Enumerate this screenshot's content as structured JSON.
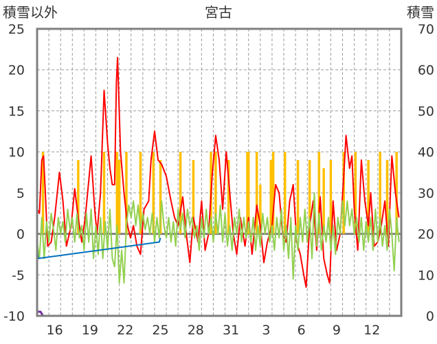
{
  "chart_data": {
    "type": "line",
    "title": "宮古",
    "ylabel_left": "積雪以外",
    "ylabel_right": "積雪",
    "y_left_range": [
      -10,
      25
    ],
    "y_left_ticks": [
      "25",
      "20",
      "15",
      "10",
      "5",
      "0",
      "-5",
      "-10"
    ],
    "y_right_range": [
      0,
      70
    ],
    "y_right_ticks": [
      "70",
      "60",
      "50",
      "40",
      "30",
      "20",
      "10",
      "0"
    ],
    "x_range_days": [
      0,
      31
    ],
    "x_ticks": [
      "16",
      "19",
      "22",
      "25",
      "28",
      "31",
      "3",
      "6",
      "9",
      "12"
    ],
    "x_tick_positions_days": [
      1.5,
      4.5,
      7.5,
      10.5,
      13.5,
      16.5,
      19.5,
      22.5,
      25.5,
      28.5
    ],
    "grid_vertical": "dashed, every day",
    "grid_horizontal": "dashed",
    "colors": {
      "precipitation": "#ffc000",
      "wind": "#ff0000",
      "temperature": "#92d050",
      "snow_depth": "#7030a0",
      "sunshine": "#0070c0",
      "zero_line": "#808080"
    },
    "series": [
      {
        "key": "precipitation",
        "axis": "left",
        "style": "bars",
        "baseline": 0,
        "bars": [
          [
            0.5,
            10
          ],
          [
            3.5,
            9
          ],
          [
            5.7,
            10
          ],
          [
            6.8,
            10
          ],
          [
            7.0,
            9
          ],
          [
            7.6,
            10
          ],
          [
            8.8,
            10
          ],
          [
            9.9,
            10
          ],
          [
            10.5,
            9
          ],
          [
            12.2,
            10
          ],
          [
            13.3,
            9
          ],
          [
            14.8,
            10
          ],
          [
            15.2,
            10
          ],
          [
            16.3,
            9
          ],
          [
            17.9,
            10
          ],
          [
            18.0,
            10
          ],
          [
            18.7,
            10
          ],
          [
            19.0,
            6
          ],
          [
            19.9,
            9
          ],
          [
            20.1,
            10
          ],
          [
            21.1,
            10
          ],
          [
            22.2,
            9
          ],
          [
            23.2,
            9
          ],
          [
            24.0,
            10
          ],
          [
            24.4,
            8
          ],
          [
            25.0,
            9
          ],
          [
            26.1,
            10
          ],
          [
            27.1,
            10
          ],
          [
            28.2,
            9
          ],
          [
            29.2,
            10
          ],
          [
            29.8,
            9
          ],
          [
            30.6,
            10
          ]
        ]
      },
      {
        "key": "wind",
        "axis": "left",
        "style": "line",
        "points": [
          [
            0,
            3
          ],
          [
            0.2,
            2.5
          ],
          [
            0.4,
            9
          ],
          [
            0.55,
            9.5
          ],
          [
            0.7,
            5
          ],
          [
            0.9,
            -1.5
          ],
          [
            1.2,
            -1
          ],
          [
            1.5,
            2
          ],
          [
            1.9,
            7.5
          ],
          [
            2.2,
            4
          ],
          [
            2.5,
            -1.5
          ],
          [
            2.9,
            1
          ],
          [
            3.2,
            5.5
          ],
          [
            3.5,
            2
          ],
          [
            3.8,
            -1
          ],
          [
            4.1,
            2
          ],
          [
            4.6,
            9.5
          ],
          [
            4.9,
            3
          ],
          [
            5.1,
            0
          ],
          [
            5.4,
            5
          ],
          [
            5.7,
            17.5
          ],
          [
            6.0,
            11
          ],
          [
            6.2,
            8
          ],
          [
            6.4,
            6
          ],
          [
            6.6,
            6
          ],
          [
            6.75,
            18.5
          ],
          [
            6.85,
            21.5
          ],
          [
            7.1,
            10
          ],
          [
            7.4,
            5
          ],
          [
            7.7,
            1
          ],
          [
            7.95,
            -0.5
          ],
          [
            8.2,
            1
          ],
          [
            8.5,
            -1.5
          ],
          [
            8.8,
            -2.5
          ],
          [
            9.1,
            3
          ],
          [
            9.5,
            4
          ],
          [
            9.7,
            9
          ],
          [
            10.0,
            12.5
          ],
          [
            10.3,
            9
          ],
          [
            10.6,
            8.5
          ],
          [
            11.0,
            7
          ],
          [
            11.4,
            4
          ],
          [
            11.7,
            2
          ],
          [
            12.0,
            1
          ],
          [
            12.4,
            4.5
          ],
          [
            12.7,
            0
          ],
          [
            13.0,
            -3.5
          ],
          [
            13.3,
            2
          ],
          [
            13.7,
            -1
          ],
          [
            14.0,
            4
          ],
          [
            14.3,
            -2
          ],
          [
            14.6,
            0
          ],
          [
            14.9,
            7
          ],
          [
            15.2,
            12
          ],
          [
            15.5,
            9
          ],
          [
            15.8,
            3
          ],
          [
            16.1,
            10
          ],
          [
            16.4,
            5
          ],
          [
            16.7,
            0
          ],
          [
            17.0,
            -2.5
          ],
          [
            17.3,
            2
          ],
          [
            17.7,
            -1.5
          ],
          [
            18.0,
            2
          ],
          [
            18.3,
            -2.5
          ],
          [
            18.7,
            3.5
          ],
          [
            19.0,
            1
          ],
          [
            19.3,
            -3.5
          ],
          [
            19.6,
            -1
          ],
          [
            20.0,
            1
          ],
          [
            20.3,
            6
          ],
          [
            20.6,
            5
          ],
          [
            20.9,
            0
          ],
          [
            21.2,
            -1
          ],
          [
            21.5,
            4
          ],
          [
            21.8,
            6
          ],
          [
            22.1,
            -1
          ],
          [
            22.4,
            -2.5
          ],
          [
            22.7,
            -5
          ],
          [
            22.9,
            -6.5
          ],
          [
            23.2,
            1
          ],
          [
            23.5,
            4
          ],
          [
            23.8,
            -2
          ],
          [
            24.1,
            4.5
          ],
          [
            24.4,
            -3
          ],
          [
            24.7,
            -5
          ],
          [
            24.9,
            -6
          ],
          [
            25.2,
            4
          ],
          [
            25.5,
            -2
          ],
          [
            25.8,
            0
          ],
          [
            26.1,
            7
          ],
          [
            26.3,
            12
          ],
          [
            26.6,
            8
          ],
          [
            26.8,
            9.5
          ],
          [
            27.0,
            3
          ],
          [
            27.3,
            -2
          ],
          [
            27.6,
            9
          ],
          [
            27.9,
            4
          ],
          [
            28.2,
            1
          ],
          [
            28.4,
            5
          ],
          [
            28.7,
            -1.5
          ],
          [
            29.0,
            -1
          ],
          [
            29.3,
            1
          ],
          [
            29.6,
            4
          ],
          [
            29.9,
            -1.5
          ],
          [
            30.2,
            9.5
          ],
          [
            30.5,
            5
          ],
          [
            30.8,
            2
          ]
        ]
      },
      {
        "key": "temperature",
        "axis": "left",
        "style": "line",
        "points": [
          [
            0,
            -1
          ],
          [
            0.2,
            -3
          ],
          [
            0.4,
            2
          ],
          [
            0.6,
            -3
          ],
          [
            0.8,
            1.5
          ],
          [
            1.0,
            -1
          ],
          [
            1.2,
            2.5
          ],
          [
            1.4,
            0.5
          ],
          [
            1.6,
            -2
          ],
          [
            1.8,
            2
          ],
          [
            2.0,
            0
          ],
          [
            2.2,
            1.5
          ],
          [
            2.4,
            -1
          ],
          [
            2.6,
            3
          ],
          [
            2.8,
            0.5
          ],
          [
            3.0,
            2
          ],
          [
            3.2,
            -1
          ],
          [
            3.4,
            2.5
          ],
          [
            3.6,
            -0.5
          ],
          [
            3.8,
            1
          ],
          [
            4.0,
            -2
          ],
          [
            4.2,
            2.5
          ],
          [
            4.4,
            -1
          ],
          [
            4.6,
            3
          ],
          [
            4.8,
            -3
          ],
          [
            5.0,
            1
          ],
          [
            5.2,
            -2.5
          ],
          [
            5.4,
            2
          ],
          [
            5.6,
            -3
          ],
          [
            5.8,
            1.5
          ],
          [
            6.0,
            -2
          ],
          [
            6.2,
            3
          ],
          [
            6.4,
            -3
          ],
          [
            6.6,
            -4
          ],
          [
            6.8,
            1
          ],
          [
            7.0,
            -6
          ],
          [
            7.2,
            -2
          ],
          [
            7.4,
            -6
          ],
          [
            7.6,
            1
          ],
          [
            7.8,
            3.5
          ],
          [
            8.0,
            2
          ],
          [
            8.2,
            4
          ],
          [
            8.4,
            1
          ],
          [
            8.6,
            3.5
          ],
          [
            8.8,
            0.5
          ],
          [
            9.0,
            2.5
          ],
          [
            9.2,
            0.5
          ],
          [
            9.4,
            2
          ],
          [
            9.6,
            0
          ],
          [
            9.8,
            2.5
          ],
          [
            10.0,
            -1
          ],
          [
            10.2,
            2
          ],
          [
            10.4,
            -0.5
          ],
          [
            10.6,
            4
          ],
          [
            10.8,
            1
          ],
          [
            11.0,
            -0.5
          ],
          [
            11.2,
            2
          ],
          [
            11.4,
            -1
          ],
          [
            11.6,
            1.5
          ],
          [
            11.8,
            -1.5
          ],
          [
            12.0,
            3
          ],
          [
            12.2,
            0.5
          ],
          [
            12.4,
            2.5
          ],
          [
            12.6,
            -0.5
          ],
          [
            12.8,
            3
          ],
          [
            13.0,
            1
          ],
          [
            13.2,
            2
          ],
          [
            13.4,
            -0.5
          ],
          [
            13.6,
            1
          ],
          [
            13.8,
            -2
          ],
          [
            14.0,
            2
          ],
          [
            14.2,
            -0.5
          ],
          [
            14.4,
            3
          ],
          [
            14.6,
            0
          ],
          [
            14.8,
            2
          ],
          [
            15.0,
            -1
          ],
          [
            15.2,
            2.5
          ],
          [
            15.4,
            0
          ],
          [
            15.6,
            3.5
          ],
          [
            15.8,
            -1
          ],
          [
            16.0,
            2.5
          ],
          [
            16.2,
            -1.5
          ],
          [
            16.4,
            1
          ],
          [
            16.6,
            -2
          ],
          [
            16.8,
            2
          ],
          [
            17.0,
            0
          ],
          [
            17.2,
            3
          ],
          [
            17.4,
            -1
          ],
          [
            17.6,
            2
          ],
          [
            17.8,
            -0.5
          ],
          [
            18.0,
            1.5
          ],
          [
            18.2,
            -1
          ],
          [
            18.4,
            2
          ],
          [
            18.6,
            -2
          ],
          [
            18.8,
            1
          ],
          [
            19.0,
            -1.5
          ],
          [
            19.2,
            2.5
          ],
          [
            19.4,
            0
          ],
          [
            19.6,
            2
          ],
          [
            19.8,
            -1
          ],
          [
            20.0,
            1
          ],
          [
            20.2,
            -2
          ],
          [
            20.4,
            2
          ],
          [
            20.6,
            -0.5
          ],
          [
            20.8,
            3
          ],
          [
            21.0,
            -2
          ],
          [
            21.2,
            1
          ],
          [
            21.4,
            -3
          ],
          [
            21.6,
            2
          ],
          [
            21.8,
            -5.5
          ],
          [
            22.0,
            1
          ],
          [
            22.2,
            -2
          ],
          [
            22.4,
            2
          ],
          [
            22.6,
            -1
          ],
          [
            22.8,
            3
          ],
          [
            23.0,
            -1
          ],
          [
            23.2,
            2
          ],
          [
            23.4,
            -3
          ],
          [
            23.6,
            5
          ],
          [
            23.8,
            -1.5
          ],
          [
            24.0,
            2.5
          ],
          [
            24.2,
            -2
          ],
          [
            24.4,
            1
          ],
          [
            24.6,
            -1
          ],
          [
            24.8,
            2
          ],
          [
            25.0,
            -2
          ],
          [
            25.2,
            1
          ],
          [
            25.4,
            -2.5
          ],
          [
            25.6,
            2
          ],
          [
            25.8,
            0
          ],
          [
            26.0,
            4
          ],
          [
            26.2,
            1
          ],
          [
            26.4,
            4
          ],
          [
            26.6,
            1
          ],
          [
            26.8,
            3
          ],
          [
            27.0,
            0
          ],
          [
            27.2,
            2
          ],
          [
            27.4,
            -1
          ],
          [
            27.6,
            2
          ],
          [
            27.8,
            -2
          ],
          [
            28.0,
            1.5
          ],
          [
            28.2,
            -1
          ],
          [
            28.4,
            2
          ],
          [
            28.6,
            -2
          ],
          [
            28.8,
            3
          ],
          [
            29.0,
            -1
          ],
          [
            29.2,
            2
          ],
          [
            29.4,
            -1.5
          ],
          [
            29.6,
            1
          ],
          [
            29.8,
            -2
          ],
          [
            30.0,
            3
          ],
          [
            30.2,
            0
          ],
          [
            30.4,
            -4.5
          ],
          [
            30.6,
            2
          ],
          [
            30.8,
            -1
          ]
        ]
      },
      {
        "key": "sunshine",
        "axis": "left",
        "style": "line",
        "points": [
          [
            0.0,
            -2
          ],
          [
            0.1,
            -3
          ],
          [
            10.4,
            -1
          ],
          [
            10.5,
            -0.5
          ]
        ]
      },
      {
        "key": "snow_depth",
        "axis": "right",
        "style": "line",
        "points": [
          [
            0,
            1
          ],
          [
            0.3,
            1
          ],
          [
            0.5,
            0
          ],
          [
            31,
            0
          ]
        ]
      }
    ]
  }
}
